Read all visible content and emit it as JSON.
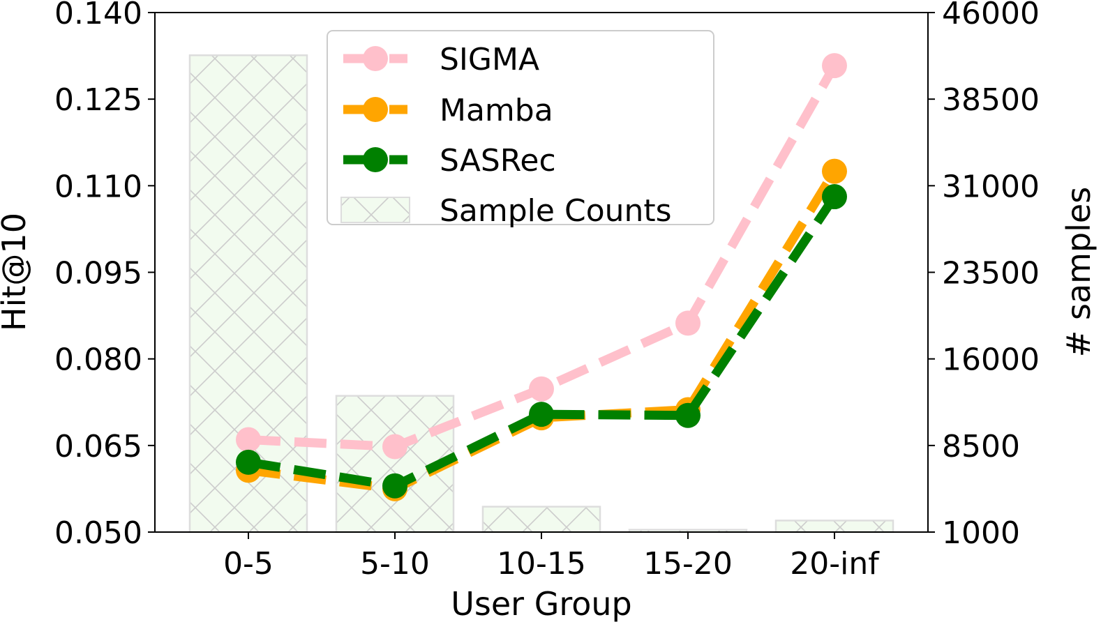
{
  "chart_data": {
    "type": "line",
    "categories": [
      "0-5",
      "5-10",
      "10-15",
      "15-20",
      "20-inf"
    ],
    "xlabel": "User Group",
    "ylabel": "Hit@10",
    "y2label": "# samples",
    "ylim": [
      0.05,
      0.14
    ],
    "yticks": [
      "0.050",
      "0.065",
      "0.080",
      "0.095",
      "0.110",
      "0.125",
      "0.140"
    ],
    "y2lim": [
      1000,
      46000
    ],
    "y2ticks": [
      "1000",
      "8500",
      "16000",
      "23500",
      "31000",
      "38500",
      "46000"
    ],
    "grid": false,
    "legend_position": "top-center",
    "series": [
      {
        "name": "SIGMA",
        "values": [
          0.066,
          0.0648,
          0.0748,
          0.0862,
          0.1308
        ],
        "color": "#ffc0cb",
        "kind": "line"
      },
      {
        "name": "Mamba",
        "values": [
          0.0607,
          0.0575,
          0.0698,
          0.0712,
          0.1125
        ],
        "color": "#ffa500",
        "kind": "line"
      },
      {
        "name": "SASRec",
        "values": [
          0.0621,
          0.058,
          0.0704,
          0.0702,
          0.1081
        ],
        "color": "#008000",
        "kind": "line"
      },
      {
        "name": "Sample Counts",
        "values": [
          42300,
          12800,
          3200,
          1200,
          2000
        ],
        "color": "#f2fbef",
        "kind": "bar",
        "axis": "right"
      }
    ]
  }
}
